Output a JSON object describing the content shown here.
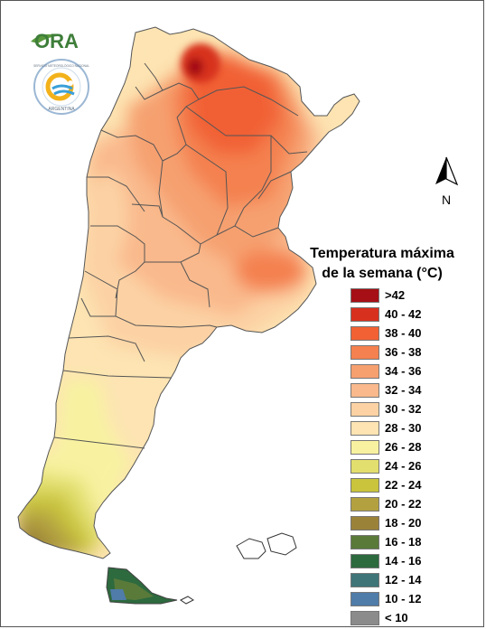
{
  "logos": {
    "ora_text": "ORA",
    "smn_ring_text": "SERVICIO METEOROLÓGICO NACIONAL",
    "smn_country": "ARGENTINA"
  },
  "north_arrow": {
    "label": "N"
  },
  "legend": {
    "title_line1": "Temperatura máxima",
    "title_line2": "de la semana (°C)",
    "items": [
      {
        "label": ">42",
        "color": "#a50f15"
      },
      {
        "label": "40 - 42",
        "color": "#d7301f"
      },
      {
        "label": "38 - 40",
        "color": "#f16134"
      },
      {
        "label": "36 - 38",
        "color": "#f4814f"
      },
      {
        "label": "34 - 36",
        "color": "#f6a070"
      },
      {
        "label": "32 - 34",
        "color": "#f9b98c"
      },
      {
        "label": "30 - 32",
        "color": "#fcd2a4"
      },
      {
        "label": "28 - 30",
        "color": "#fde4b2"
      },
      {
        "label": "26 - 28",
        "color": "#f8f2a0"
      },
      {
        "label": "24 - 26",
        "color": "#e2df6e"
      },
      {
        "label": "22 - 24",
        "color": "#c9c43c"
      },
      {
        "label": "20 - 22",
        "color": "#b3a140"
      },
      {
        "label": "18 - 20",
        "color": "#9a8239"
      },
      {
        "label": "16 - 18",
        "color": "#5a7a3a"
      },
      {
        "label": "14 - 16",
        "color": "#2d6a3e"
      },
      {
        "label": "12 - 14",
        "color": "#3f7577"
      },
      {
        "label": "10 - 12",
        "color": "#4f7ca8"
      },
      {
        "label": "< 10",
        "color": "#8b8b8b"
      }
    ]
  }
}
